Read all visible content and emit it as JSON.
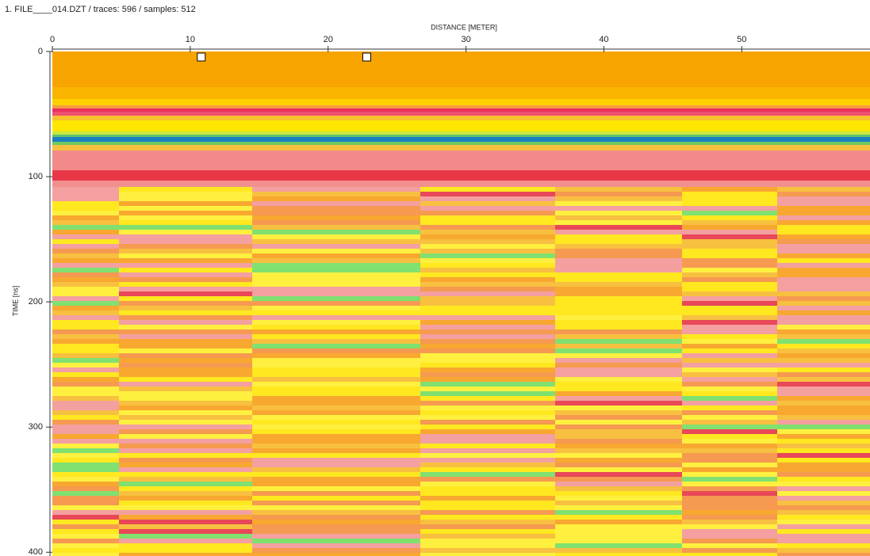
{
  "chart_data": {
    "type": "heatmap",
    "title": "1. FILE____014.DZT / traces: 596 / samples: 512",
    "x_label": "DISTANCE [METER]",
    "y_label": "TIME [ns]",
    "xlim": [
      0,
      59.3
    ],
    "xticks": [
      0,
      10,
      20,
      30,
      40,
      50
    ],
    "ylim": [
      0,
      403
    ],
    "yticks": [
      0,
      100,
      200,
      300,
      400
    ],
    "y_inverted": true,
    "markers": [
      10.8,
      22.8
    ]
  }
}
